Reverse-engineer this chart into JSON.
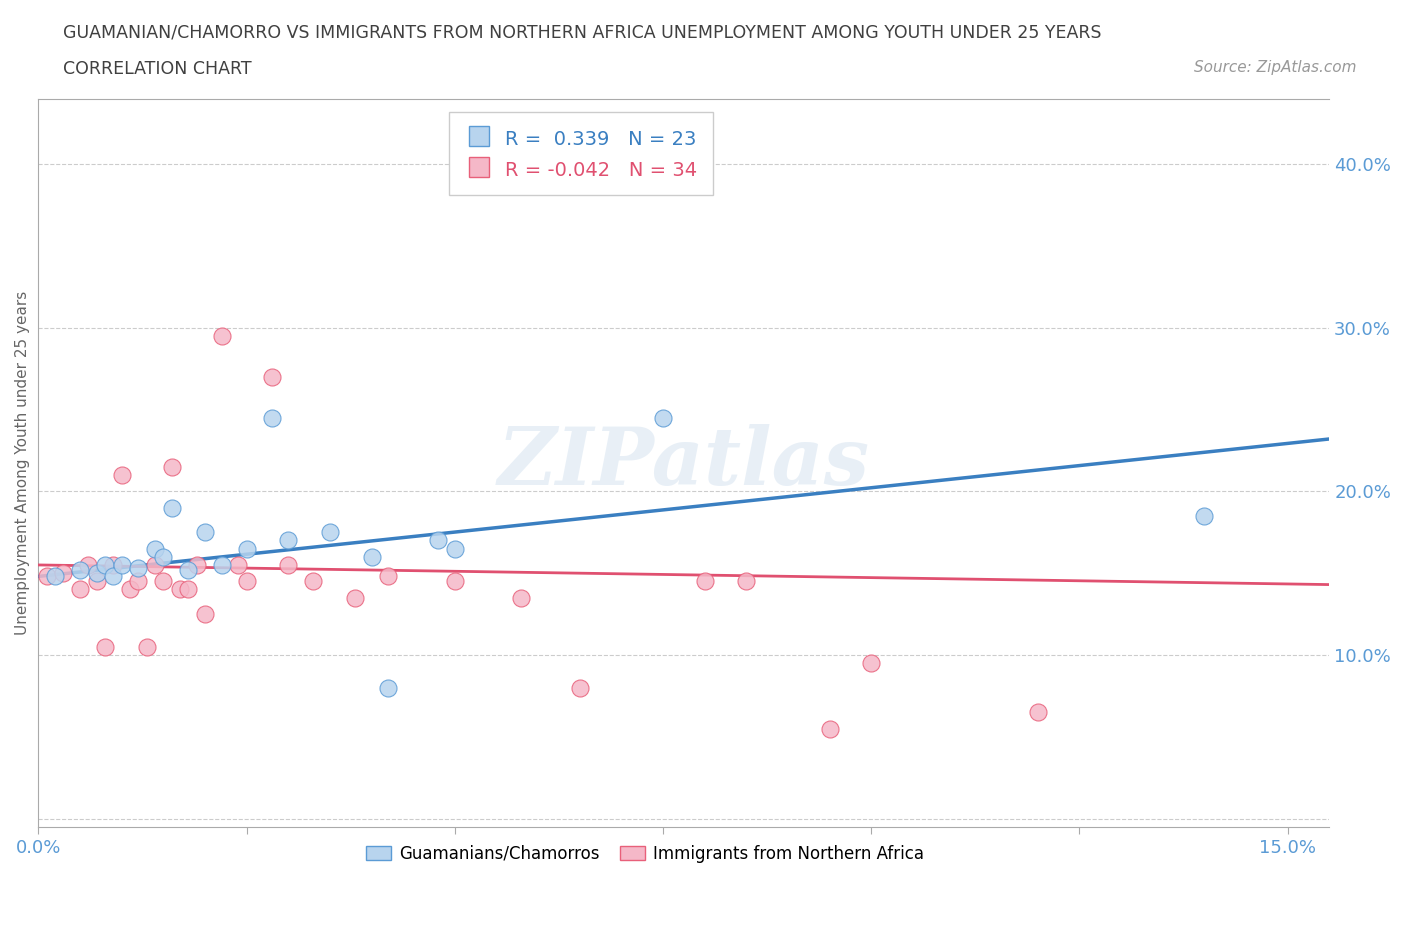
{
  "title_line1": "GUAMANIAN/CHAMORRO VS IMMIGRANTS FROM NORTHERN AFRICA UNEMPLOYMENT AMONG YOUTH UNDER 25 YEARS",
  "title_line2": "CORRELATION CHART",
  "source_text": "Source: ZipAtlas.com",
  "ylabel": "Unemployment Among Youth under 25 years",
  "xlim": [
    0.0,
    0.155
  ],
  "ylim": [
    -0.005,
    0.44
  ],
  "xticks": [
    0.0,
    0.025,
    0.05,
    0.075,
    0.1,
    0.125,
    0.15
  ],
  "xticklabels": [
    "0.0%",
    "",
    "",
    "",
    "",
    "",
    "15.0%"
  ],
  "yticks": [
    0.0,
    0.1,
    0.2,
    0.3,
    0.4
  ],
  "yticklabels_right": [
    "",
    "10.0%",
    "20.0%",
    "30.0%",
    "40.0%"
  ],
  "blue_color": "#b8d4ee",
  "pink_color": "#f5b8c8",
  "blue_edge_color": "#5b9bd5",
  "pink_edge_color": "#e8607a",
  "blue_line_color": "#3a7fc1",
  "pink_line_color": "#e05070",
  "legend_blue_r": "0.339",
  "legend_blue_n": "23",
  "legend_pink_r": "-0.042",
  "legend_pink_n": "34",
  "watermark": "ZIPatlas",
  "label_blue": "Guamanians/Chamorros",
  "label_pink": "Immigrants from Northern Africa",
  "blue_x": [
    0.002,
    0.005,
    0.007,
    0.008,
    0.009,
    0.01,
    0.012,
    0.014,
    0.015,
    0.016,
    0.018,
    0.02,
    0.022,
    0.025,
    0.028,
    0.03,
    0.035,
    0.04,
    0.042,
    0.048,
    0.05,
    0.075,
    0.14
  ],
  "blue_y": [
    0.148,
    0.152,
    0.15,
    0.155,
    0.148,
    0.155,
    0.153,
    0.165,
    0.16,
    0.19,
    0.152,
    0.175,
    0.155,
    0.165,
    0.245,
    0.17,
    0.175,
    0.16,
    0.08,
    0.17,
    0.165,
    0.245,
    0.185
  ],
  "pink_x": [
    0.001,
    0.003,
    0.005,
    0.006,
    0.007,
    0.008,
    0.009,
    0.01,
    0.011,
    0.012,
    0.013,
    0.014,
    0.015,
    0.016,
    0.017,
    0.018,
    0.019,
    0.02,
    0.022,
    0.024,
    0.025,
    0.028,
    0.03,
    0.033,
    0.038,
    0.042,
    0.05,
    0.058,
    0.065,
    0.08,
    0.085,
    0.095,
    0.1,
    0.12
  ],
  "pink_y": [
    0.148,
    0.15,
    0.14,
    0.155,
    0.145,
    0.105,
    0.155,
    0.21,
    0.14,
    0.145,
    0.105,
    0.155,
    0.145,
    0.215,
    0.14,
    0.14,
    0.155,
    0.125,
    0.295,
    0.155,
    0.145,
    0.27,
    0.155,
    0.145,
    0.135,
    0.148,
    0.145,
    0.135,
    0.08,
    0.145,
    0.145,
    0.055,
    0.095,
    0.065
  ],
  "blue_trend_x": [
    0.0,
    0.155
  ],
  "blue_trend_y": [
    0.148,
    0.232
  ],
  "pink_trend_x": [
    0.0,
    0.155
  ],
  "pink_trend_y": [
    0.155,
    0.143
  ],
  "grid_color": "#cccccc",
  "background_color": "#ffffff",
  "title_color": "#404040",
  "tick_label_color": "#5b9bd5",
  "axis_color": "#aaaaaa"
}
